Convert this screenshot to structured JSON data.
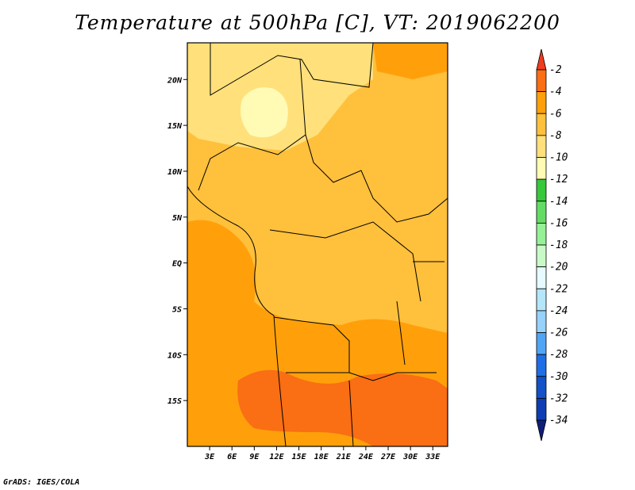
{
  "title": "Temperature at 500hPa [C], VT: 2019062200",
  "footer": "GrADS: IGES/COLA",
  "map": {
    "lon_range": [
      0,
      35
    ],
    "lat_range": [
      -20,
      24
    ],
    "lat_ticks": [
      {
        "value": 20,
        "label": "20N"
      },
      {
        "value": 15,
        "label": "15N"
      },
      {
        "value": 10,
        "label": "10N"
      },
      {
        "value": 5,
        "label": "5N"
      },
      {
        "value": 0,
        "label": "EQ"
      },
      {
        "value": -5,
        "label": "5S"
      },
      {
        "value": -10,
        "label": "10S"
      },
      {
        "value": -15,
        "label": "15S"
      }
    ],
    "lon_ticks": [
      {
        "value": 3,
        "label": "3E"
      },
      {
        "value": 6,
        "label": "6E"
      },
      {
        "value": 9,
        "label": "9E"
      },
      {
        "value": 12,
        "label": "12E"
      },
      {
        "value": 15,
        "label": "15E"
      },
      {
        "value": 18,
        "label": "18E"
      },
      {
        "value": 21,
        "label": "21E"
      },
      {
        "value": 24,
        "label": "24E"
      },
      {
        "value": 27,
        "label": "27E"
      },
      {
        "value": 30,
        "label": "30E"
      },
      {
        "value": 33,
        "label": "33E"
      }
    ]
  },
  "colorbar": {
    "labels": [
      "-2",
      "-4",
      "-6",
      "-8",
      "-10",
      "-12",
      "-14",
      "-16",
      "-18",
      "-20",
      "-22",
      "-24",
      "-26",
      "-28",
      "-30",
      "-32",
      "-34"
    ],
    "colors": [
      "#f03c1e",
      "#fa6e14",
      "#ffa00a",
      "#ffc03c",
      "#ffe07a",
      "#fffab4",
      "#37c83c",
      "#64dc64",
      "#96f096",
      "#c8fac8",
      "#e6faff",
      "#b4e6fa",
      "#96d2fa",
      "#50a5f5",
      "#1e6ee6",
      "#1450c8",
      "#0f3cb4",
      "#0f1e78"
    ]
  }
}
